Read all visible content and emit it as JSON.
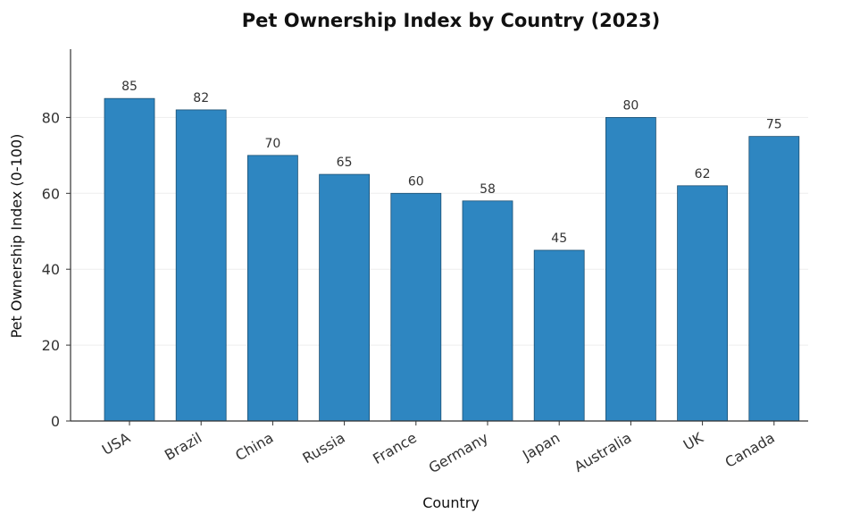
{
  "chart_data": {
    "type": "bar",
    "title": "Pet Ownership Index by Country (2023)",
    "xlabel": "Country",
    "ylabel": "Pet Ownership Index (0-100)",
    "categories": [
      "USA",
      "Brazil",
      "China",
      "Russia",
      "France",
      "Germany",
      "Japan",
      "Australia",
      "UK",
      "Canada"
    ],
    "values": [
      85,
      82,
      70,
      65,
      60,
      58,
      45,
      80,
      62,
      75
    ],
    "ylim": [
      0,
      98
    ],
    "yticks": [
      0,
      20,
      40,
      60,
      80
    ],
    "grid": true,
    "legend": "none",
    "colors": {
      "bar": "#2e86c1",
      "bar_edge": "#1b4f72",
      "grid": "#eeeeee",
      "axis": "#333333"
    }
  }
}
